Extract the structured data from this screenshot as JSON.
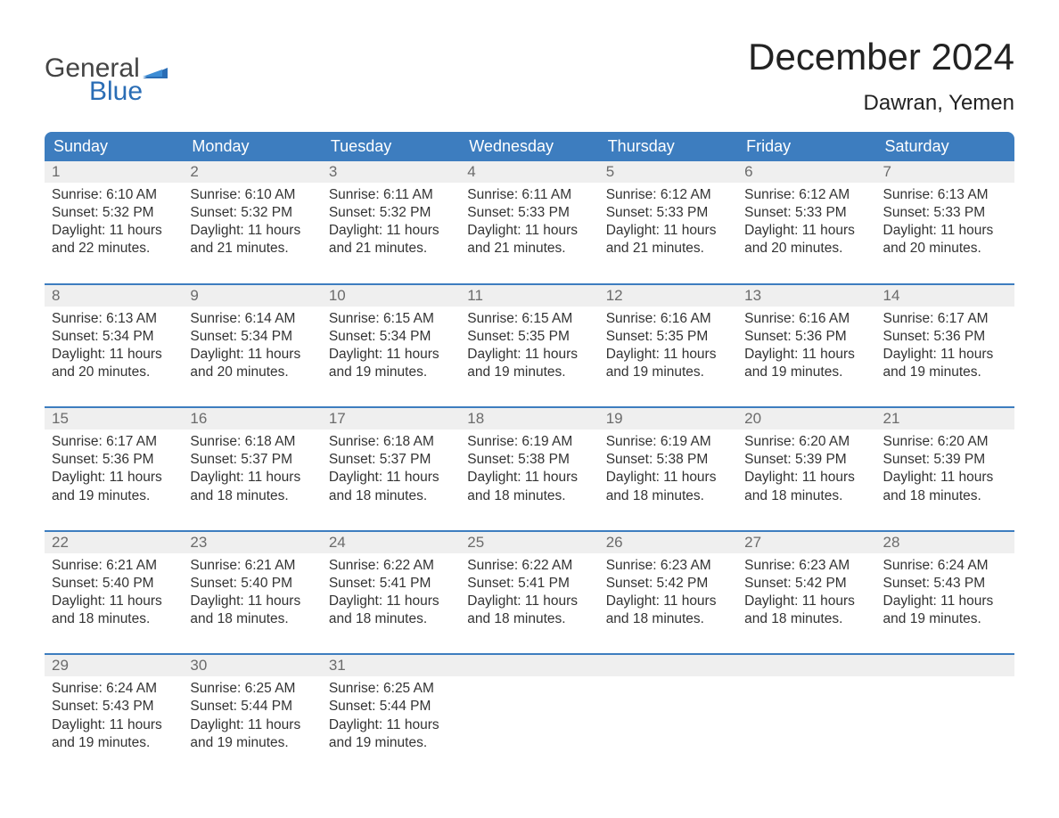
{
  "logo": {
    "text_general": "General",
    "text_blue": "Blue",
    "flag_color": "#2a6db5"
  },
  "header": {
    "month_title": "December 2024",
    "location": "Dawran, Yemen"
  },
  "colors": {
    "header_bg": "#3d7dbf",
    "header_text": "#ffffff",
    "week_border": "#3d7dbf",
    "daynum_bg": "#efefef",
    "daynum_text": "#6b6b6b",
    "body_text": "#333333",
    "background": "#ffffff"
  },
  "fonts": {
    "month_title_pt": 42,
    "location_pt": 24,
    "header_pt": 18,
    "daynum_pt": 17,
    "cell_pt": 15.5
  },
  "calendar": {
    "headers": [
      "Sunday",
      "Monday",
      "Tuesday",
      "Wednesday",
      "Thursday",
      "Friday",
      "Saturday"
    ],
    "weeks": [
      [
        {
          "day": "1",
          "sunrise": "Sunrise: 6:10 AM",
          "sunset": "Sunset: 5:32 PM",
          "daylight1": "Daylight: 11 hours",
          "daylight2": "and 22 minutes."
        },
        {
          "day": "2",
          "sunrise": "Sunrise: 6:10 AM",
          "sunset": "Sunset: 5:32 PM",
          "daylight1": "Daylight: 11 hours",
          "daylight2": "and 21 minutes."
        },
        {
          "day": "3",
          "sunrise": "Sunrise: 6:11 AM",
          "sunset": "Sunset: 5:32 PM",
          "daylight1": "Daylight: 11 hours",
          "daylight2": "and 21 minutes."
        },
        {
          "day": "4",
          "sunrise": "Sunrise: 6:11 AM",
          "sunset": "Sunset: 5:33 PM",
          "daylight1": "Daylight: 11 hours",
          "daylight2": "and 21 minutes."
        },
        {
          "day": "5",
          "sunrise": "Sunrise: 6:12 AM",
          "sunset": "Sunset: 5:33 PM",
          "daylight1": "Daylight: 11 hours",
          "daylight2": "and 21 minutes."
        },
        {
          "day": "6",
          "sunrise": "Sunrise: 6:12 AM",
          "sunset": "Sunset: 5:33 PM",
          "daylight1": "Daylight: 11 hours",
          "daylight2": "and 20 minutes."
        },
        {
          "day": "7",
          "sunrise": "Sunrise: 6:13 AM",
          "sunset": "Sunset: 5:33 PM",
          "daylight1": "Daylight: 11 hours",
          "daylight2": "and 20 minutes."
        }
      ],
      [
        {
          "day": "8",
          "sunrise": "Sunrise: 6:13 AM",
          "sunset": "Sunset: 5:34 PM",
          "daylight1": "Daylight: 11 hours",
          "daylight2": "and 20 minutes."
        },
        {
          "day": "9",
          "sunrise": "Sunrise: 6:14 AM",
          "sunset": "Sunset: 5:34 PM",
          "daylight1": "Daylight: 11 hours",
          "daylight2": "and 20 minutes."
        },
        {
          "day": "10",
          "sunrise": "Sunrise: 6:15 AM",
          "sunset": "Sunset: 5:34 PM",
          "daylight1": "Daylight: 11 hours",
          "daylight2": "and 19 minutes."
        },
        {
          "day": "11",
          "sunrise": "Sunrise: 6:15 AM",
          "sunset": "Sunset: 5:35 PM",
          "daylight1": "Daylight: 11 hours",
          "daylight2": "and 19 minutes."
        },
        {
          "day": "12",
          "sunrise": "Sunrise: 6:16 AM",
          "sunset": "Sunset: 5:35 PM",
          "daylight1": "Daylight: 11 hours",
          "daylight2": "and 19 minutes."
        },
        {
          "day": "13",
          "sunrise": "Sunrise: 6:16 AM",
          "sunset": "Sunset: 5:36 PM",
          "daylight1": "Daylight: 11 hours",
          "daylight2": "and 19 minutes."
        },
        {
          "day": "14",
          "sunrise": "Sunrise: 6:17 AM",
          "sunset": "Sunset: 5:36 PM",
          "daylight1": "Daylight: 11 hours",
          "daylight2": "and 19 minutes."
        }
      ],
      [
        {
          "day": "15",
          "sunrise": "Sunrise: 6:17 AM",
          "sunset": "Sunset: 5:36 PM",
          "daylight1": "Daylight: 11 hours",
          "daylight2": "and 19 minutes."
        },
        {
          "day": "16",
          "sunrise": "Sunrise: 6:18 AM",
          "sunset": "Sunset: 5:37 PM",
          "daylight1": "Daylight: 11 hours",
          "daylight2": "and 18 minutes."
        },
        {
          "day": "17",
          "sunrise": "Sunrise: 6:18 AM",
          "sunset": "Sunset: 5:37 PM",
          "daylight1": "Daylight: 11 hours",
          "daylight2": "and 18 minutes."
        },
        {
          "day": "18",
          "sunrise": "Sunrise: 6:19 AM",
          "sunset": "Sunset: 5:38 PM",
          "daylight1": "Daylight: 11 hours",
          "daylight2": "and 18 minutes."
        },
        {
          "day": "19",
          "sunrise": "Sunrise: 6:19 AM",
          "sunset": "Sunset: 5:38 PM",
          "daylight1": "Daylight: 11 hours",
          "daylight2": "and 18 minutes."
        },
        {
          "day": "20",
          "sunrise": "Sunrise: 6:20 AM",
          "sunset": "Sunset: 5:39 PM",
          "daylight1": "Daylight: 11 hours",
          "daylight2": "and 18 minutes."
        },
        {
          "day": "21",
          "sunrise": "Sunrise: 6:20 AM",
          "sunset": "Sunset: 5:39 PM",
          "daylight1": "Daylight: 11 hours",
          "daylight2": "and 18 minutes."
        }
      ],
      [
        {
          "day": "22",
          "sunrise": "Sunrise: 6:21 AM",
          "sunset": "Sunset: 5:40 PM",
          "daylight1": "Daylight: 11 hours",
          "daylight2": "and 18 minutes."
        },
        {
          "day": "23",
          "sunrise": "Sunrise: 6:21 AM",
          "sunset": "Sunset: 5:40 PM",
          "daylight1": "Daylight: 11 hours",
          "daylight2": "and 18 minutes."
        },
        {
          "day": "24",
          "sunrise": "Sunrise: 6:22 AM",
          "sunset": "Sunset: 5:41 PM",
          "daylight1": "Daylight: 11 hours",
          "daylight2": "and 18 minutes."
        },
        {
          "day": "25",
          "sunrise": "Sunrise: 6:22 AM",
          "sunset": "Sunset: 5:41 PM",
          "daylight1": "Daylight: 11 hours",
          "daylight2": "and 18 minutes."
        },
        {
          "day": "26",
          "sunrise": "Sunrise: 6:23 AM",
          "sunset": "Sunset: 5:42 PM",
          "daylight1": "Daylight: 11 hours",
          "daylight2": "and 18 minutes."
        },
        {
          "day": "27",
          "sunrise": "Sunrise: 6:23 AM",
          "sunset": "Sunset: 5:42 PM",
          "daylight1": "Daylight: 11 hours",
          "daylight2": "and 18 minutes."
        },
        {
          "day": "28",
          "sunrise": "Sunrise: 6:24 AM",
          "sunset": "Sunset: 5:43 PM",
          "daylight1": "Daylight: 11 hours",
          "daylight2": "and 19 minutes."
        }
      ],
      [
        {
          "day": "29",
          "sunrise": "Sunrise: 6:24 AM",
          "sunset": "Sunset: 5:43 PM",
          "daylight1": "Daylight: 11 hours",
          "daylight2": "and 19 minutes."
        },
        {
          "day": "30",
          "sunrise": "Sunrise: 6:25 AM",
          "sunset": "Sunset: 5:44 PM",
          "daylight1": "Daylight: 11 hours",
          "daylight2": "and 19 minutes."
        },
        {
          "day": "31",
          "sunrise": "Sunrise: 6:25 AM",
          "sunset": "Sunset: 5:44 PM",
          "daylight1": "Daylight: 11 hours",
          "daylight2": "and 19 minutes."
        },
        null,
        null,
        null,
        null
      ]
    ]
  }
}
